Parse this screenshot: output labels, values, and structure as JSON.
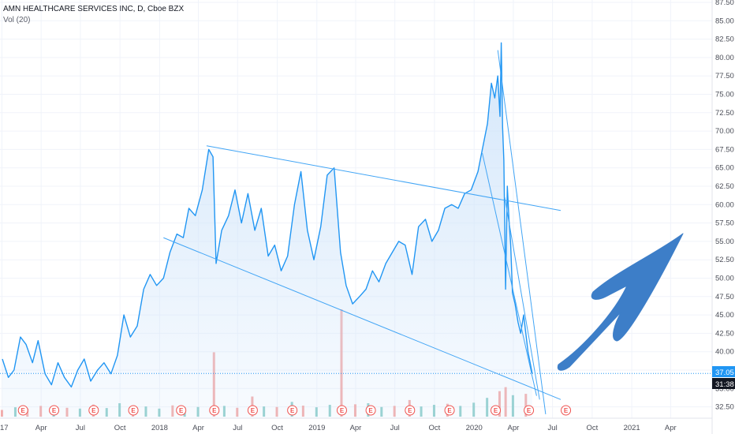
{
  "header": {
    "title": "AMN HEALTHCARE SERVICES INC, D, Cboe BZX",
    "volume_label": "Vol (20)"
  },
  "price_tags": {
    "last_price": "37.05",
    "countdown": "31:38"
  },
  "colors": {
    "line": "#2196f3",
    "area_fill": "#cfe4fa",
    "trendline": "#42a5f5",
    "arrow": "#3d7ec8",
    "vol_up": "#7cc5c2",
    "vol_down": "#f19e9b",
    "earnings": "#ef5350",
    "grid": "#f0f3fa",
    "tag_blue": "#2196f3",
    "tag_dark": "#131722"
  },
  "chart_data": {
    "type": "area",
    "title": "AMN HEALTHCARE SERVICES INC, D, Cboe BZX",
    "xlabel": "",
    "ylabel": "",
    "ylim": [
      31,
      88
    ],
    "grid": true,
    "x_ticks": [
      "17",
      "Apr",
      "Jul",
      "Oct",
      "2018",
      "Apr",
      "Jul",
      "Oct",
      "2019",
      "Apr",
      "Jul",
      "Oct",
      "2020",
      "Apr",
      "Jul",
      "Oct",
      "2021",
      "Apr"
    ],
    "y_ticks": [
      "32.50",
      "35.00",
      "37.50",
      "40.00",
      "42.50",
      "45.00",
      "47.50",
      "50.00",
      "52.50",
      "55.00",
      "57.50",
      "60.00",
      "62.50",
      "65.00",
      "67.50",
      "70.00",
      "72.50",
      "75.00",
      "77.50",
      "80.00",
      "82.50",
      "85.00",
      "87.50"
    ],
    "series": [
      {
        "points": [
          [
            "2017-01-01",
            39.0
          ],
          [
            "2017-01-15",
            36.5
          ],
          [
            "2017-01-28",
            37.5
          ],
          [
            "2017-02-12",
            42.0
          ],
          [
            "2017-02-25",
            41.0
          ],
          [
            "2017-03-12",
            38.5
          ],
          [
            "2017-03-25",
            41.5
          ],
          [
            "2017-04-10",
            37.0
          ],
          [
            "2017-04-25",
            35.5
          ],
          [
            "2017-05-10",
            38.5
          ],
          [
            "2017-05-25",
            36.5
          ],
          [
            "2017-06-10",
            35.2
          ],
          [
            "2017-06-25",
            37.5
          ],
          [
            "2017-07-10",
            39.0
          ],
          [
            "2017-07-25",
            36.0
          ],
          [
            "2017-08-10",
            37.5
          ],
          [
            "2017-08-25",
            38.5
          ],
          [
            "2017-09-10",
            37.0
          ],
          [
            "2017-09-25",
            39.5
          ],
          [
            "2017-10-10",
            45.0
          ],
          [
            "2017-10-25",
            42.0
          ],
          [
            "2017-11-10",
            43.5
          ],
          [
            "2017-11-25",
            48.5
          ],
          [
            "2017-12-10",
            50.5
          ],
          [
            "2017-12-25",
            49.0
          ],
          [
            "2018-01-10",
            50.0
          ],
          [
            "2018-01-25",
            53.5
          ],
          [
            "2018-02-10",
            56.0
          ],
          [
            "2018-02-25",
            55.5
          ],
          [
            "2018-03-10",
            59.5
          ],
          [
            "2018-03-25",
            58.5
          ],
          [
            "2018-04-10",
            62.0
          ],
          [
            "2018-04-25",
            67.5
          ],
          [
            "2018-05-05",
            66.5
          ],
          [
            "2018-05-12",
            52.0
          ],
          [
            "2018-05-25",
            56.5
          ],
          [
            "2018-06-10",
            58.5
          ],
          [
            "2018-06-25",
            62.0
          ],
          [
            "2018-07-10",
            57.5
          ],
          [
            "2018-07-25",
            61.5
          ],
          [
            "2018-08-10",
            56.5
          ],
          [
            "2018-08-25",
            59.5
          ],
          [
            "2018-09-10",
            53.0
          ],
          [
            "2018-09-25",
            54.5
          ],
          [
            "2018-10-10",
            51.0
          ],
          [
            "2018-10-25",
            53.0
          ],
          [
            "2018-11-10",
            60.0
          ],
          [
            "2018-11-25",
            64.5
          ],
          [
            "2018-12-10",
            56.5
          ],
          [
            "2018-12-25",
            52.5
          ],
          [
            "2019-01-10",
            57.0
          ],
          [
            "2019-01-25",
            64.0
          ],
          [
            "2019-02-10",
            65.0
          ],
          [
            "2019-02-25",
            53.5
          ],
          [
            "2019-03-10",
            49.0
          ],
          [
            "2019-03-25",
            46.5
          ],
          [
            "2019-04-10",
            47.5
          ],
          [
            "2019-04-25",
            48.5
          ],
          [
            "2019-05-10",
            51.0
          ],
          [
            "2019-05-25",
            49.5
          ],
          [
            "2019-06-10",
            52.0
          ],
          [
            "2019-06-25",
            53.5
          ],
          [
            "2019-07-10",
            55.0
          ],
          [
            "2019-07-25",
            54.5
          ],
          [
            "2019-08-10",
            50.5
          ],
          [
            "2019-08-25",
            57.0
          ],
          [
            "2019-09-10",
            58.0
          ],
          [
            "2019-09-25",
            55.0
          ],
          [
            "2019-10-10",
            56.5
          ],
          [
            "2019-10-25",
            59.5
          ],
          [
            "2019-11-10",
            60.0
          ],
          [
            "2019-11-25",
            59.5
          ],
          [
            "2019-12-10",
            61.5
          ],
          [
            "2019-12-25",
            62.0
          ],
          [
            "2020-01-10",
            64.5
          ],
          [
            "2020-01-20",
            67.5
          ],
          [
            "2020-02-01",
            71.0
          ],
          [
            "2020-02-10",
            76.5
          ],
          [
            "2020-02-18",
            74.5
          ],
          [
            "2020-02-25",
            77.5
          ],
          [
            "2020-03-01",
            72.0
          ],
          [
            "2020-03-04",
            82.0
          ],
          [
            "2020-03-07",
            70.5
          ],
          [
            "2020-03-10",
            66.0
          ],
          [
            "2020-03-14",
            48.5
          ],
          [
            "2020-03-18",
            62.5
          ],
          [
            "2020-03-22",
            58.0
          ],
          [
            "2020-03-26",
            54.5
          ],
          [
            "2020-03-30",
            48.0
          ],
          [
            "2020-04-05",
            46.5
          ],
          [
            "2020-04-12",
            44.0
          ],
          [
            "2020-04-18",
            42.5
          ],
          [
            "2020-04-25",
            45.0
          ],
          [
            "2020-05-05",
            40.0
          ],
          [
            "2020-05-15",
            37.05
          ]
        ]
      }
    ],
    "trendlines": [
      {
        "from": [
          "2018-04-20",
          68.0
        ],
        "to": [
          "2020-07-20",
          59.2
        ]
      },
      {
        "from": [
          "2018-01-10",
          55.5
        ],
        "to": [
          "2020-07-20",
          33.5
        ]
      },
      {
        "from": [
          "2020-02-25",
          81.0
        ],
        "to": [
          "2020-06-15",
          31.5
        ]
      },
      {
        "from": [
          "2020-01-20",
          67.0
        ],
        "to": [
          "2020-05-25",
          34.0
        ]
      },
      {
        "from": [
          "2020-03-12",
          61.0
        ],
        "to": [
          "2020-06-01",
          33.5
        ]
      }
    ],
    "volume": [
      {
        "x": "2017-01-01",
        "v": 0.25,
        "up": false
      },
      {
        "x": "2017-02-01",
        "v": 0.35,
        "up": true
      },
      {
        "x": "2017-03-01",
        "v": 0.3,
        "up": false
      },
      {
        "x": "2017-04-01",
        "v": 0.4,
        "up": false
      },
      {
        "x": "2017-05-01",
        "v": 0.28,
        "up": true
      },
      {
        "x": "2017-06-01",
        "v": 0.33,
        "up": false
      },
      {
        "x": "2017-07-01",
        "v": 0.3,
        "up": true
      },
      {
        "x": "2017-08-01",
        "v": 0.45,
        "up": false
      },
      {
        "x": "2017-09-01",
        "v": 0.32,
        "up": true
      },
      {
        "x": "2017-10-01",
        "v": 0.5,
        "up": true
      },
      {
        "x": "2017-11-01",
        "v": 0.35,
        "up": false
      },
      {
        "x": "2017-12-01",
        "v": 0.38,
        "up": true
      },
      {
        "x": "2018-01-01",
        "v": 0.3,
        "up": true
      },
      {
        "x": "2018-02-01",
        "v": 0.42,
        "up": false
      },
      {
        "x": "2018-03-01",
        "v": 0.34,
        "up": true
      },
      {
        "x": "2018-04-01",
        "v": 0.36,
        "up": true
      },
      {
        "x": "2018-05-08",
        "v": 2.4,
        "up": false
      },
      {
        "x": "2018-06-01",
        "v": 0.4,
        "up": true
      },
      {
        "x": "2018-07-01",
        "v": 0.33,
        "up": false
      },
      {
        "x": "2018-08-05",
        "v": 0.75,
        "up": false
      },
      {
        "x": "2018-09-01",
        "v": 0.38,
        "up": true
      },
      {
        "x": "2018-10-01",
        "v": 0.36,
        "up": false
      },
      {
        "x": "2018-11-05",
        "v": 0.55,
        "up": true
      },
      {
        "x": "2018-12-01",
        "v": 0.41,
        "up": false
      },
      {
        "x": "2019-01-01",
        "v": 0.35,
        "up": true
      },
      {
        "x": "2019-02-01",
        "v": 0.44,
        "up": true
      },
      {
        "x": "2019-02-28",
        "v": 4.0,
        "up": false
      },
      {
        "x": "2019-04-01",
        "v": 0.46,
        "up": false
      },
      {
        "x": "2019-05-01",
        "v": 0.5,
        "up": true
      },
      {
        "x": "2019-06-01",
        "v": 0.36,
        "up": true
      },
      {
        "x": "2019-07-01",
        "v": 0.4,
        "up": false
      },
      {
        "x": "2019-08-05",
        "v": 0.62,
        "up": false
      },
      {
        "x": "2019-09-01",
        "v": 0.38,
        "up": true
      },
      {
        "x": "2019-10-01",
        "v": 0.44,
        "up": true
      },
      {
        "x": "2019-11-01",
        "v": 0.48,
        "up": false
      },
      {
        "x": "2019-12-01",
        "v": 0.4,
        "up": true
      },
      {
        "x": "2020-01-01",
        "v": 0.52,
        "up": true
      },
      {
        "x": "2020-02-01",
        "v": 0.7,
        "up": true
      },
      {
        "x": "2020-03-01",
        "v": 0.95,
        "up": false
      },
      {
        "x": "2020-03-15",
        "v": 1.1,
        "up": false
      },
      {
        "x": "2020-04-01",
        "v": 0.8,
        "up": true
      },
      {
        "x": "2020-05-01",
        "v": 0.85,
        "up": false
      }
    ],
    "earnings_markers": [
      "2017-02-18",
      "2017-05-01",
      "2017-08-01",
      "2017-11-01",
      "2018-02-20",
      "2018-05-08",
      "2018-08-05",
      "2018-11-05",
      "2019-02-28",
      "2019-05-06",
      "2019-08-05",
      "2019-11-05",
      "2020-02-20",
      "2020-05-07",
      "2020-08-01"
    ],
    "earnings_label": "E",
    "last_price_line": 37.05
  }
}
